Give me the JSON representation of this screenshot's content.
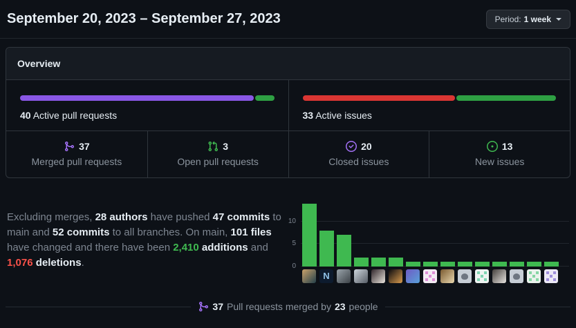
{
  "header": {
    "title": "September 20, 2023 – September 27, 2023",
    "period": {
      "prefix": "Period:",
      "value": "1 week"
    }
  },
  "overview": {
    "title": "Overview",
    "pull_requests": {
      "count": "40",
      "label": "Active pull requests",
      "segments": [
        {
          "name": "merged",
          "pct": 92.5,
          "color": "#8957e5"
        },
        {
          "name": "open",
          "pct": 7.5,
          "color": "#2ea043"
        }
      ]
    },
    "issues": {
      "count": "33",
      "label": "Active issues",
      "segments": [
        {
          "name": "closed",
          "pct": 60.6,
          "color": "#da3633"
        },
        {
          "name": "new",
          "pct": 39.4,
          "color": "#2ea043"
        }
      ]
    },
    "stats": [
      {
        "icon": "git-merge-icon",
        "color": "#a371f7",
        "value": "37",
        "label": "Merged pull requests"
      },
      {
        "icon": "git-pull-request-icon",
        "color": "#3fb950",
        "value": "3",
        "label": "Open pull requests"
      },
      {
        "icon": "issue-closed-icon",
        "color": "#a371f7",
        "value": "20",
        "label": "Closed issues"
      },
      {
        "icon": "issue-opened-icon",
        "color": "#3fb950",
        "value": "13",
        "label": "New issues"
      }
    ]
  },
  "summary": {
    "segments": [
      {
        "style": "muted",
        "text": "Excluding merges, "
      },
      {
        "style": "strong",
        "text": "28 authors"
      },
      {
        "style": "muted",
        "text": " have pushed "
      },
      {
        "style": "strong",
        "text": "47 commits"
      },
      {
        "style": "muted",
        "text": " to main and "
      },
      {
        "style": "strong",
        "text": "52 commits"
      },
      {
        "style": "muted",
        "text": " to all branches. On main, "
      },
      {
        "style": "strong",
        "text": "101 files"
      },
      {
        "style": "muted",
        "text": " have changed and there have been "
      },
      {
        "style": "additions",
        "text": "2,410"
      },
      {
        "style": "muted",
        "text": " "
      },
      {
        "style": "strong",
        "text": "additions"
      },
      {
        "style": "muted",
        "text": " and "
      },
      {
        "style": "deletions",
        "text": "1,076"
      },
      {
        "style": "muted",
        "text": " "
      },
      {
        "style": "strong",
        "text": "deletions"
      },
      {
        "style": "muted",
        "text": "."
      }
    ]
  },
  "chart_data": {
    "type": "bar",
    "title": "",
    "xlabel": "",
    "ylabel": "",
    "categories": [
      "author 1",
      "author 2",
      "author 3",
      "author 4",
      "author 5",
      "author 6",
      "author 7",
      "author 8",
      "author 9",
      "author 10",
      "author 11",
      "author 12",
      "author 13",
      "author 14",
      "author 15"
    ],
    "values": [
      14,
      8,
      7,
      2,
      2,
      2,
      1,
      1,
      1,
      1,
      1,
      1,
      1,
      1,
      1
    ],
    "yticks": [
      0,
      5,
      10
    ],
    "ylim": [
      0,
      15
    ],
    "bar_color": "#3fb950",
    "grid": true,
    "legend": false,
    "avatars": [
      {
        "kind": "photo",
        "c1": "#caa26b",
        "c2": "#24404a"
      },
      {
        "kind": "letter",
        "glyph": "N",
        "c1": "#0d1b2e",
        "c2": "#8fc1e8"
      },
      {
        "kind": "photo",
        "c1": "#9aa4ab",
        "c2": "#3c4247"
      },
      {
        "kind": "photo",
        "c1": "#cdd5dc",
        "c2": "#565d66"
      },
      {
        "kind": "photo",
        "c1": "#30262b",
        "c2": "#e9e4dc"
      },
      {
        "kind": "photo",
        "c1": "#0a0a0f",
        "c2": "#d99b4e"
      },
      {
        "kind": "photo",
        "c1": "#6f5bc4",
        "c2": "#58a0d8"
      },
      {
        "kind": "identicon",
        "c1": "#f2ebf3",
        "c2": "#dd8fd6"
      },
      {
        "kind": "photo",
        "c1": "#7a5a30",
        "c2": "#e8d7ae"
      },
      {
        "kind": "default",
        "c1": "#c6cdd5",
        "c2": "#6e7681"
      },
      {
        "kind": "identicon",
        "c1": "#eef3f1",
        "c2": "#7fd4b2"
      },
      {
        "kind": "photo",
        "c1": "#45403c",
        "c2": "#e6e3df"
      },
      {
        "kind": "default",
        "c1": "#c6cdd5",
        "c2": "#6e7681"
      },
      {
        "kind": "identicon",
        "c1": "#eaf2ec",
        "c2": "#85d6a4"
      },
      {
        "kind": "identicon",
        "c1": "#ece9f6",
        "c2": "#9f8fdc"
      }
    ]
  },
  "footer": {
    "merged_count": "37",
    "text_mid": "Pull requests merged by",
    "people_count": "23",
    "text_end": "people"
  },
  "colors": {
    "accent_purple": "#a371f7",
    "merged_purple": "#8957e5",
    "open_green": "#2ea043",
    "issue_red": "#da3633",
    "chart_green": "#3fb950",
    "additions_green": "#3fb950",
    "deletions_red": "#f85149"
  }
}
